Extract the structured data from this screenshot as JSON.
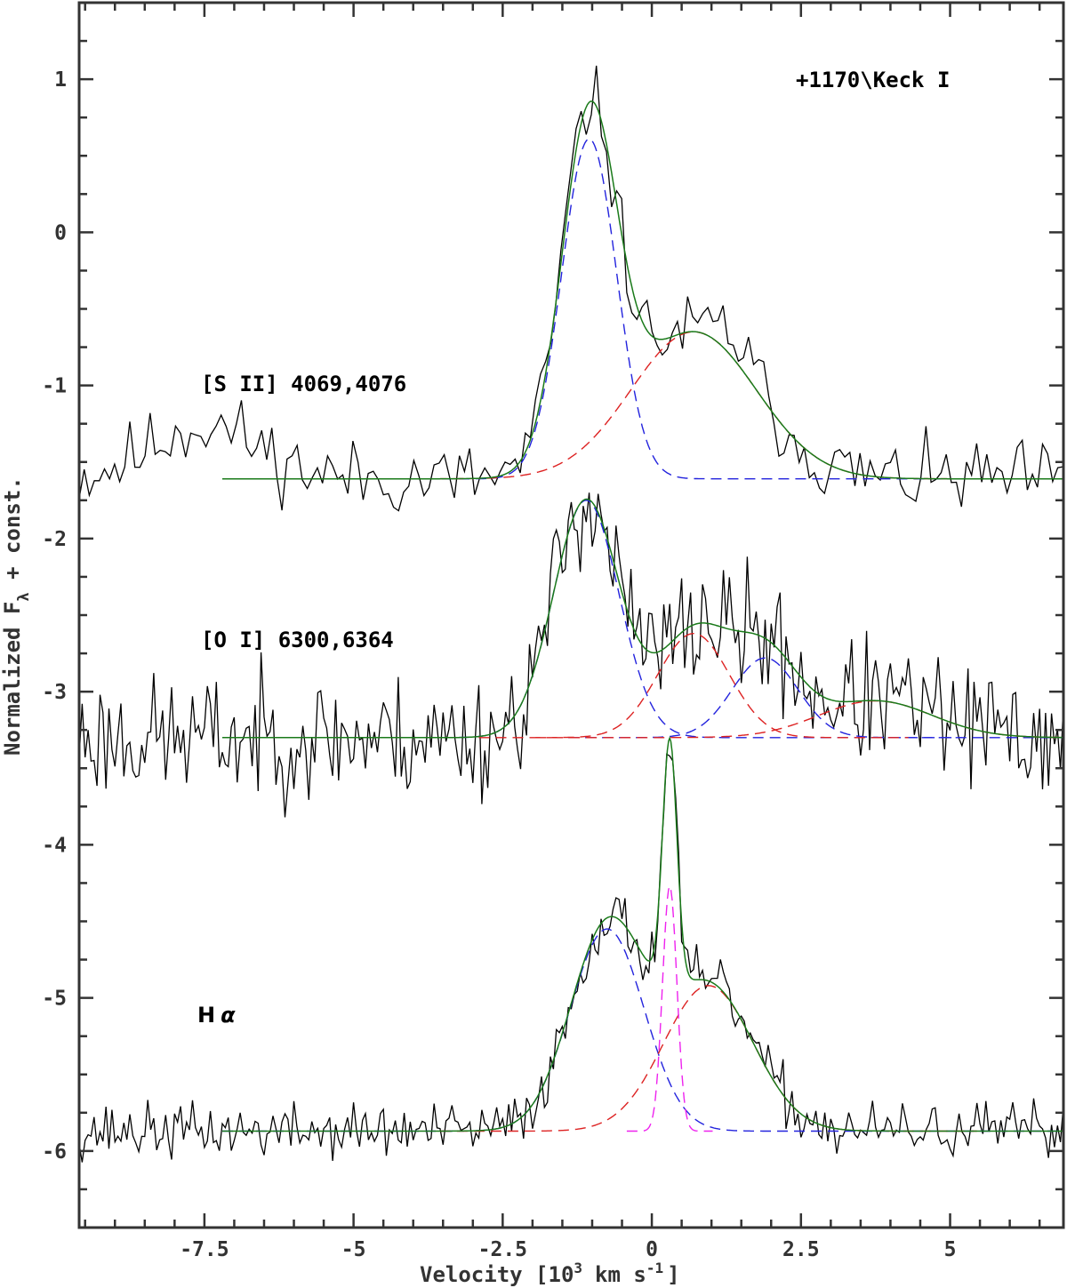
{
  "chart_data": {
    "type": "line",
    "title": "",
    "xlabel": "Velocity [10",
    "xlabel_exp": "3",
    "xlabel_unit": "km s",
    "xlabel_unit_exp": "-1",
    "xlabel_close": "]",
    "ylabel_main": "Normalized F",
    "ylabel_sub": "λ",
    "ylabel_tail": " + const.",
    "xlim": [
      -9.6,
      6.9
    ],
    "ylim": [
      -6.5,
      1.5
    ],
    "xticks": [
      -7.5,
      -5,
      -2.5,
      0,
      2.5,
      5
    ],
    "xtick_labels": [
      "-7.5",
      "-5",
      "-2.5",
      "0",
      "2.5",
      "5"
    ],
    "yticks": [
      1,
      0,
      -1,
      -2,
      -3,
      -4,
      -5,
      -6
    ],
    "ytick_labels": [
      "1",
      "0",
      "-1",
      "-2",
      "-3",
      "-4",
      "-5",
      "-6"
    ],
    "annotations": {
      "epoch": "+1170\\Keck I",
      "sii": "[S II] 4069,4076",
      "oi": "[O I] 6300,6364",
      "ha_letter": "H",
      "ha_greek": "α"
    },
    "colors": {
      "observed": "#000000",
      "total_fit": "#1a7a1a",
      "blue_component": "#2222dd",
      "red_component": "#dd2222",
      "narrow_component": "#ee22ee"
    },
    "panels": [
      {
        "name": "[S II] 4069,4076",
        "baseline": -1.61,
        "fit_x_range": [
          -7.2,
          6.9
        ],
        "obs_x_range": [
          -9.6,
          6.9
        ],
        "noise": 0.12,
        "seed": 11,
        "bumps": [
          {
            "amp": 0.35,
            "mu": -7.5,
            "sigma": 0.9
          },
          {
            "amp": 0.15,
            "mu": 1.4,
            "sigma": 0.3
          }
        ],
        "components": [
          {
            "color": "blue",
            "amp": 2.22,
            "mu": -1.05,
            "sigma": 0.46
          },
          {
            "color": "red",
            "amp": 0.96,
            "mu": 0.7,
            "sigma": 1.05
          }
        ]
      },
      {
        "name": "[O I] 6300,6364",
        "baseline": -3.3,
        "fit_x_range": [
          -7.2,
          6.9
        ],
        "obs_x_range": [
          -9.6,
          6.9
        ],
        "noise": 0.2,
        "seed": 23,
        "bumps": [],
        "components": [
          {
            "color": "blue",
            "amp": 1.55,
            "mu": -1.1,
            "sigma": 0.55
          },
          {
            "color": "blue",
            "amp": 0.52,
            "mu": 1.9,
            "sigma": 0.55
          },
          {
            "color": "red",
            "amp": 0.68,
            "mu": 0.7,
            "sigma": 0.6
          },
          {
            "color": "red",
            "amp": 0.24,
            "mu": 3.75,
            "sigma": 0.95
          }
        ]
      },
      {
        "name": "Hα",
        "baseline": -5.87,
        "fit_x_range": [
          -7.2,
          6.9
        ],
        "obs_x_range": [
          -9.6,
          6.9
        ],
        "noise": 0.09,
        "seed": 37,
        "bumps": [],
        "components": [
          {
            "color": "blue",
            "amp": 1.32,
            "mu": -0.75,
            "sigma": 0.62
          },
          {
            "color": "red",
            "amp": 0.95,
            "mu": 0.95,
            "sigma": 0.75
          },
          {
            "color": "narrow",
            "amp": 1.6,
            "mu": 0.3,
            "sigma": 0.12
          }
        ]
      }
    ]
  }
}
